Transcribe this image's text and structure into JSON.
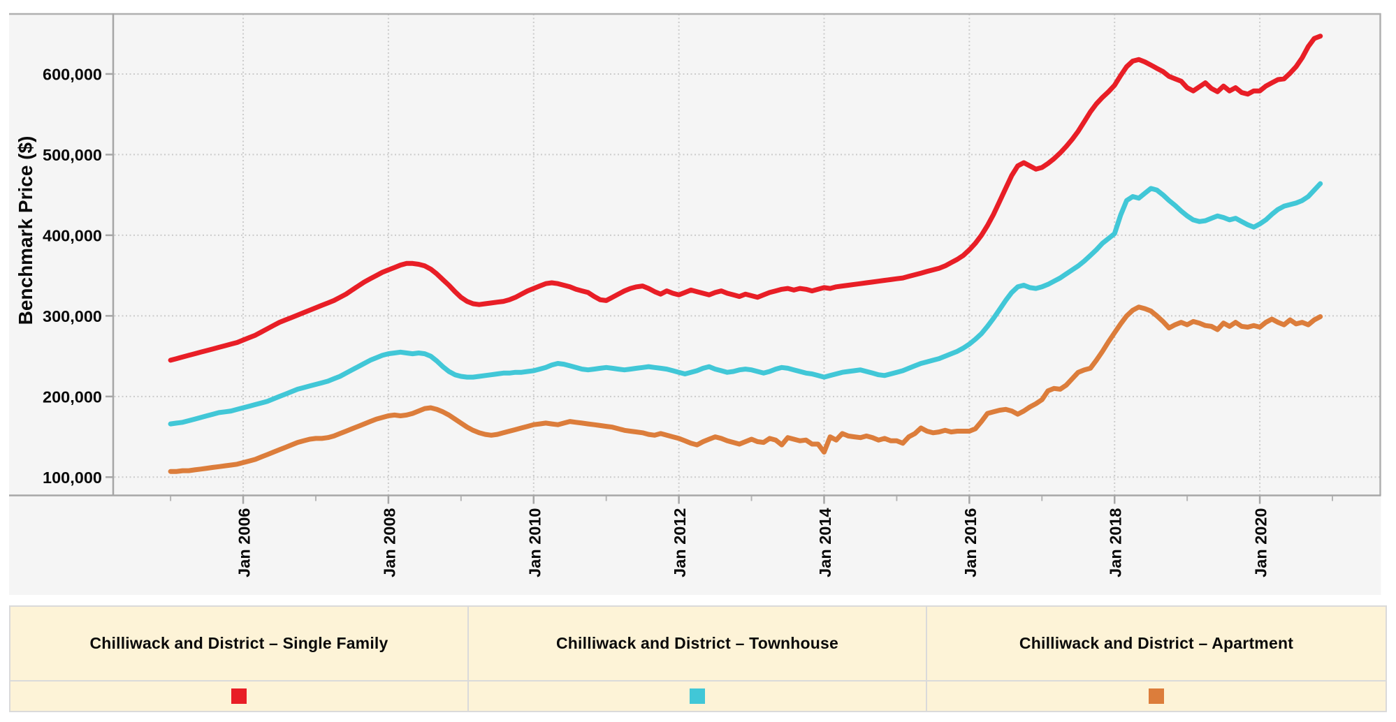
{
  "chart": {
    "style": {
      "panel_bg": "#f5f5f5",
      "grid_color": "#cbcbcb",
      "border_color": "#b0b0b0",
      "axis_color": "#a6a6a6",
      "axis_minor_tick_color": "#b5b5b5",
      "text_color": "#0a0a0a",
      "legend_bg": "#fdf3d7",
      "legend_border": "#dadada"
    },
    "y_axis": {
      "title": "Benchmark Price ($)",
      "ticks": [
        {
          "label": "600,000",
          "value": 600000
        },
        {
          "label": "500,000",
          "value": 500000
        },
        {
          "label": "400,000",
          "value": 400000
        },
        {
          "label": "300,000",
          "value": 300000
        },
        {
          "label": "200,000",
          "value": 200000
        },
        {
          "label": "100,000",
          "value": 100000
        }
      ]
    },
    "x_axis": {
      "ticks": [
        {
          "label": "Jan 2006",
          "month": 12
        },
        {
          "label": "Jan 2008",
          "month": 36
        },
        {
          "label": "Jan 2010",
          "month": 60
        },
        {
          "label": "Jan 2012",
          "month": 84
        },
        {
          "label": "Jan 2014",
          "month": 108
        },
        {
          "label": "Jan 2016",
          "month": 132
        },
        {
          "label": "Jan 2018",
          "month": 156
        },
        {
          "label": "Jan 2020",
          "month": 180
        }
      ],
      "minor_tick_months": [
        0,
        24,
        48,
        72,
        96,
        120,
        144,
        168,
        192
      ]
    }
  },
  "chart_data": {
    "type": "line",
    "frequency": "monthly",
    "x_start": "2005-01",
    "x_end": "2020-11",
    "ylabel": "Benchmark Price ($)",
    "ylim": [
      78000,
      675000
    ],
    "grid": "dotted",
    "legend_position": "bottom-table",
    "series": [
      {
        "id": "single-family",
        "name": "Chilliwack and District – Single Family",
        "color": "#e81e26",
        "values": [
          245000,
          247000,
          249000,
          251000,
          253000,
          255000,
          257000,
          259000,
          261000,
          263000,
          265000,
          267000,
          270000,
          273000,
          276000,
          280000,
          284000,
          288000,
          292000,
          295000,
          298000,
          301000,
          304000,
          307000,
          310000,
          313000,
          316000,
          319000,
          323000,
          327000,
          332000,
          337000,
          342000,
          346000,
          350000,
          354000,
          357000,
          360000,
          363000,
          365000,
          365000,
          364000,
          362000,
          358000,
          352000,
          345000,
          338000,
          330000,
          323000,
          318000,
          315000,
          314000,
          315000,
          316000,
          317000,
          318000,
          320000,
          323000,
          327000,
          331000,
          334000,
          337000,
          340000,
          341000,
          340000,
          338000,
          336000,
          333000,
          331000,
          329000,
          324000,
          320000,
          319000,
          323000,
          327000,
          331000,
          334000,
          336000,
          337000,
          334000,
          330000,
          327000,
          331000,
          328000,
          326000,
          329000,
          332000,
          330000,
          328000,
          326000,
          329000,
          331000,
          328000,
          326000,
          324000,
          327000,
          325000,
          323000,
          326000,
          329000,
          331000,
          333000,
          334000,
          332000,
          334000,
          333000,
          331000,
          333000,
          335000,
          334000,
          336000,
          337000,
          338000,
          339000,
          340000,
          341000,
          342000,
          343000,
          344000,
          345000,
          346000,
          347000,
          349000,
          351000,
          353000,
          355000,
          357000,
          359000,
          362000,
          366000,
          370000,
          375000,
          382000,
          390000,
          400000,
          412000,
          426000,
          442000,
          458000,
          474000,
          486000,
          490000,
          486000,
          482000,
          484000,
          489000,
          495000,
          502000,
          510000,
          519000,
          529000,
          541000,
          553000,
          563000,
          571000,
          578000,
          586000,
          598000,
          609000,
          616000,
          618000,
          615000,
          611000,
          607000,
          603000,
          597000,
          594000,
          591000,
          583000,
          579000,
          584000,
          589000,
          582000,
          578000,
          585000,
          579000,
          583000,
          577000,
          575000,
          579000,
          579000,
          585000,
          589000,
          593000,
          594000,
          601000,
          609000,
          620000,
          634000,
          644000,
          647000
        ]
      },
      {
        "id": "townhouse",
        "name": "Chilliwack and District – Townhouse",
        "color": "#41c7d7",
        "values": [
          166000,
          167000,
          168000,
          170000,
          172000,
          174000,
          176000,
          178000,
          180000,
          181000,
          182000,
          184000,
          186000,
          188000,
          190000,
          192000,
          194000,
          197000,
          200000,
          203000,
          206000,
          209000,
          211000,
          213000,
          215000,
          217000,
          219000,
          222000,
          225000,
          229000,
          233000,
          237000,
          241000,
          245000,
          248000,
          251000,
          253000,
          254000,
          255000,
          254000,
          253000,
          254000,
          253000,
          250000,
          244000,
          237000,
          231000,
          227000,
          225000,
          224000,
          224000,
          225000,
          226000,
          227000,
          228000,
          229000,
          229000,
          230000,
          230000,
          231000,
          232000,
          234000,
          236000,
          239000,
          241000,
          240000,
          238000,
          236000,
          234000,
          233000,
          234000,
          235000,
          236000,
          235000,
          234000,
          233000,
          234000,
          235000,
          236000,
          237000,
          236000,
          235000,
          234000,
          232000,
          230000,
          228000,
          230000,
          232000,
          235000,
          237000,
          234000,
          232000,
          230000,
          231000,
          233000,
          234000,
          233000,
          231000,
          229000,
          231000,
          234000,
          236000,
          235000,
          233000,
          231000,
          229000,
          228000,
          226000,
          224000,
          226000,
          228000,
          230000,
          231000,
          232000,
          233000,
          231000,
          229000,
          227000,
          226000,
          228000,
          230000,
          232000,
          235000,
          238000,
          241000,
          243000,
          245000,
          247000,
          250000,
          253000,
          256000,
          260000,
          265000,
          271000,
          278000,
          287000,
          297000,
          308000,
          319000,
          329000,
          336000,
          338000,
          335000,
          334000,
          336000,
          339000,
          343000,
          347000,
          352000,
          357000,
          362000,
          368000,
          375000,
          382000,
          390000,
          396000,
          402000,
          425000,
          443000,
          448000,
          446000,
          452000,
          458000,
          456000,
          450000,
          443000,
          437000,
          430000,
          424000,
          419000,
          417000,
          418000,
          421000,
          424000,
          422000,
          419000,
          421000,
          417000,
          413000,
          410000,
          414000,
          419000,
          426000,
          432000,
          436000,
          438000,
          440000,
          443000,
          448000,
          456000,
          464000
        ]
      },
      {
        "id": "apartment",
        "name": "Chilliwack and District – Apartment",
        "color": "#dc7d3b",
        "values": [
          107000,
          107000,
          108000,
          108000,
          109000,
          110000,
          111000,
          112000,
          113000,
          114000,
          115000,
          116000,
          118000,
          120000,
          122000,
          125000,
          128000,
          131000,
          134000,
          137000,
          140000,
          143000,
          145000,
          147000,
          148000,
          148000,
          149000,
          151000,
          154000,
          157000,
          160000,
          163000,
          166000,
          169000,
          172000,
          174000,
          176000,
          177000,
          176000,
          177000,
          179000,
          182000,
          185000,
          186000,
          184000,
          181000,
          177000,
          172000,
          167000,
          162000,
          158000,
          155000,
          153000,
          152000,
          153000,
          155000,
          157000,
          159000,
          161000,
          163000,
          165000,
          166000,
          167000,
          166000,
          165000,
          167000,
          169000,
          168000,
          167000,
          166000,
          165000,
          164000,
          163000,
          162000,
          160000,
          158000,
          157000,
          156000,
          155000,
          153000,
          152000,
          154000,
          152000,
          150000,
          148000,
          145000,
          142000,
          140000,
          144000,
          147000,
          150000,
          148000,
          145000,
          143000,
          141000,
          144000,
          147000,
          144000,
          143000,
          148000,
          146000,
          140000,
          149000,
          147000,
          145000,
          146000,
          141000,
          141000,
          131000,
          150000,
          146000,
          154000,
          151000,
          150000,
          149000,
          151000,
          149000,
          146000,
          148000,
          145000,
          145000,
          142000,
          150000,
          154000,
          161000,
          157000,
          155000,
          156000,
          158000,
          156000,
          157000,
          157000,
          157000,
          160000,
          169000,
          179000,
          181000,
          183000,
          184000,
          182000,
          178000,
          182000,
          187000,
          191000,
          196000,
          207000,
          210000,
          209000,
          214000,
          222000,
          230000,
          233000,
          235000,
          245000,
          256000,
          268000,
          279000,
          290000,
          300000,
          307000,
          311000,
          309000,
          306000,
          300000,
          293000,
          285000,
          289000,
          292000,
          289000,
          293000,
          291000,
          288000,
          287000,
          283000,
          291000,
          287000,
          292000,
          287000,
          286000,
          288000,
          286000,
          292000,
          296000,
          292000,
          289000,
          295000,
          290000,
          292000,
          289000,
          295000,
          299000
        ]
      }
    ]
  }
}
